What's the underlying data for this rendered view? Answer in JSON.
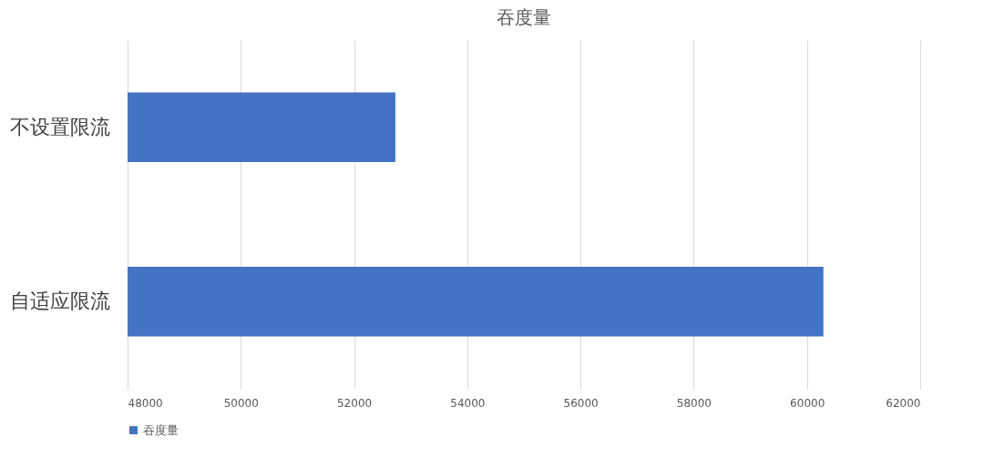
{
  "chart_data": {
    "type": "bar",
    "orientation": "horizontal",
    "title": "吞度量",
    "categories": [
      "不设置限流",
      "自适应限流"
    ],
    "series": [
      {
        "name": "吞度量",
        "color": "#4472c4",
        "values": [
          52730,
          60290
        ]
      }
    ],
    "xlim": [
      48000,
      62000
    ],
    "xticks": [
      48000,
      50000,
      52000,
      54000,
      56000,
      58000,
      60000,
      62000
    ],
    "grid": "x",
    "legend": "bottom"
  }
}
